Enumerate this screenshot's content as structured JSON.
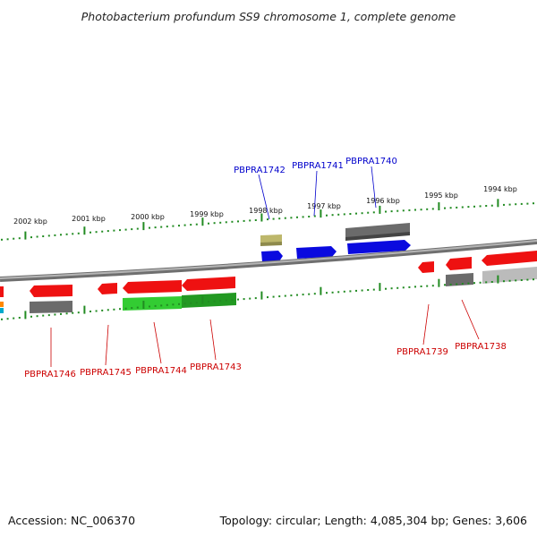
{
  "title": "Photobacterium profundum SS9 chromosome 1, complete genome",
  "footer": {
    "accession": "Accession: NC_006370",
    "topology": "Topology: circular; Length: 4,085,304 bp; Genes: 3,606"
  },
  "colors": {
    "backbone": "#888888",
    "tick": "#228b22",
    "forward_label": "#0000cc",
    "reverse_label": "#cc0000",
    "gene_red": "#ee1111",
    "gene_blue": "#0a0adf",
    "gene_green": "#33cc33",
    "gene_dark_green": "#229922",
    "gene_gray": "#666666",
    "gene_light_gray": "#bbbbbb",
    "gene_khaki": "#bdb76b"
  },
  "scale_labels": [
    "2002 kbp",
    "2001 kbp",
    "2000 kbp",
    "1999 kbp",
    "1998 kbp",
    "1997 kbp",
    "1996 kbp",
    "1995 kbp",
    "1994 kbp"
  ],
  "gene_labels": {
    "forward": [
      "PBPRA1742",
      "PBPRA1741",
      "PBPRA1740"
    ],
    "reverse": [
      "PBPRA1746",
      "PBPRA1745",
      "PBPRA1744",
      "PBPRA1743",
      "PBPRA1739",
      "PBPRA1738"
    ]
  }
}
